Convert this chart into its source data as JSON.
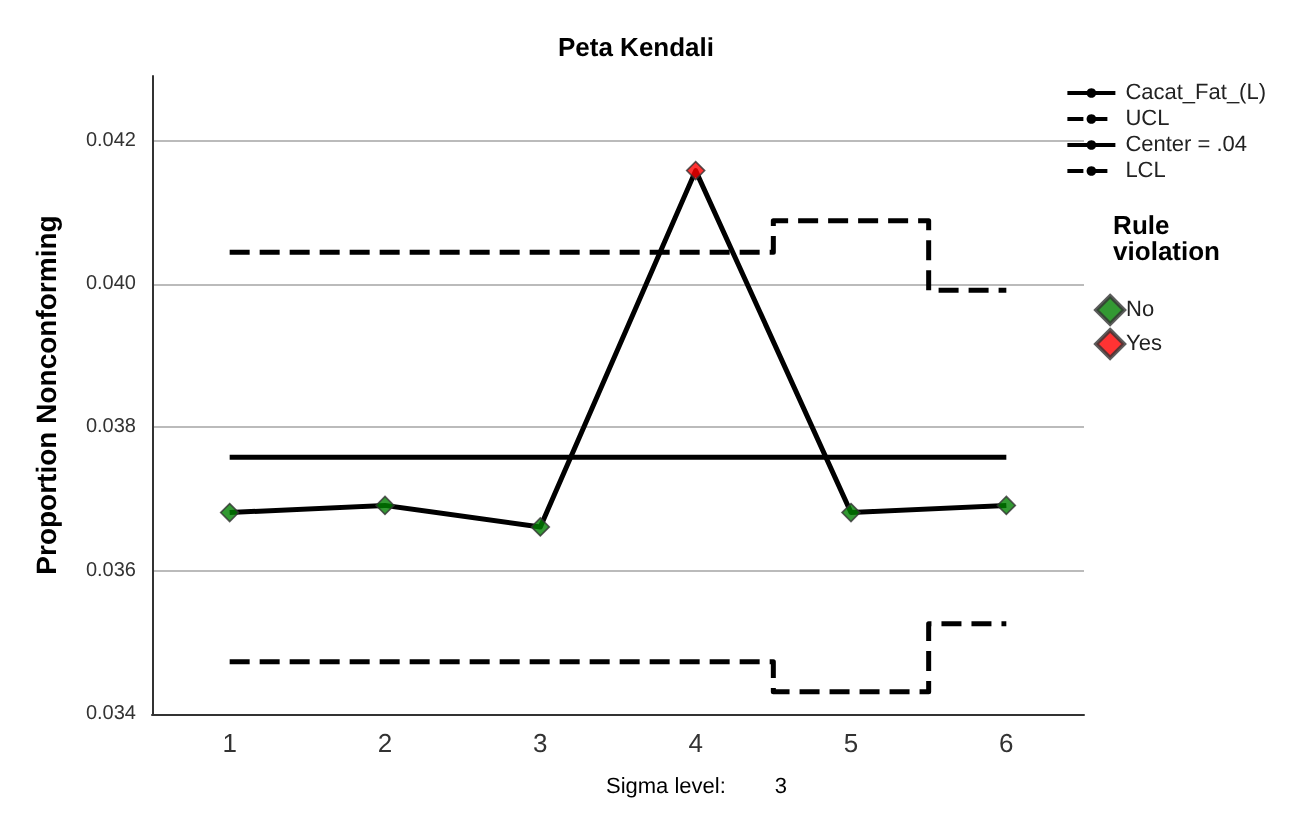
{
  "chart_data": {
    "type": "line",
    "title": "Peta Kendali",
    "ylabel": "Proportion Nonconforming",
    "legend_title": "Rule violation",
    "annotations": [
      "Sigma level: 3"
    ],
    "categories": [
      "1",
      "2",
      "3",
      "4",
      "5",
      "6"
    ],
    "series": [
      {
        "name": "Cacat_Fat_(L)",
        "color": "#000000",
        "marker": "none",
        "values": [
          0.03681,
          0.03691,
          0.03661,
          0.04158,
          0.03681,
          0.03691
        ]
      },
      {
        "name": "UCL",
        "type": "step",
        "color": "#000000",
        "line_style": "dashed",
        "marker": "none",
        "values": [
          0.04044,
          0.04044,
          0.04044,
          0.04044,
          0.04088,
          0.03991
        ]
      },
      {
        "name": "Center = .04",
        "color": "#000000",
        "marker": "none",
        "values": [
          0.03758,
          0.03758,
          0.03758,
          0.03758,
          0.03758,
          0.03758
        ]
      },
      {
        "name": "LCL",
        "type": "step",
        "color": "#000000",
        "line_style": "dashed",
        "marker": "none",
        "values": [
          0.03473,
          0.03473,
          0.03473,
          0.03473,
          0.03431,
          0.03526
        ]
      },
      {
        "name": "No",
        "type": "scatter",
        "color": "#008000",
        "marker": "diamond",
        "x": [
          "1",
          "2",
          "3",
          "5",
          "6"
        ],
        "values": [
          0.03681,
          0.03691,
          0.03661,
          0.03681,
          0.03691
        ]
      },
      {
        "name": "Yes",
        "type": "scatter",
        "color": "#ff0000",
        "marker": "diamond",
        "x": [
          "4"
        ],
        "values": [
          0.04158
        ]
      }
    ],
    "ylim": [
      0.034,
      0.0429
    ],
    "yticks": [
      {
        "value": 0.034,
        "label": "0.034"
      },
      {
        "value": 0.036,
        "label": "0.036"
      },
      {
        "value": 0.038,
        "label": "0.038"
      },
      {
        "value": 0.04,
        "label": "0.040"
      },
      {
        "value": 0.042,
        "label": "0.042"
      }
    ],
    "grid": "y",
    "legend": "right"
  }
}
